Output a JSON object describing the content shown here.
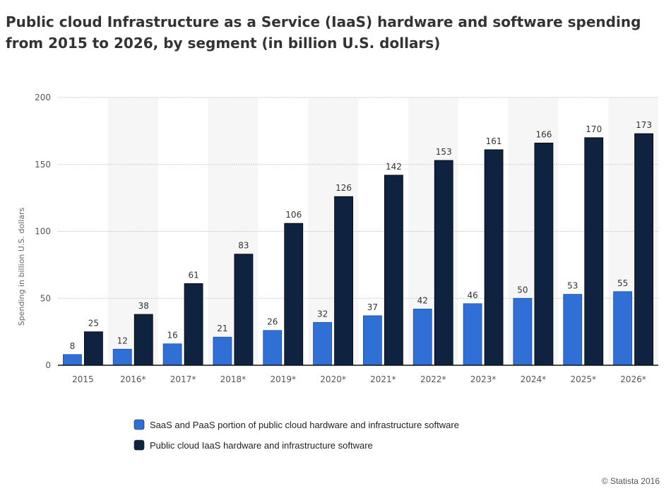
{
  "chart_data": {
    "type": "bar",
    "title": "Public cloud Infrastructure as a Service (IaaS) hardware and software spending from 2015 to 2026, by segment (in billion U.S. dollars)",
    "xlabel": "",
    "ylabel": "Spending in billion U.S. dollars",
    "ylim": [
      0,
      200
    ],
    "yticks": [
      0,
      50,
      100,
      150,
      200
    ],
    "grid": true,
    "legend_position": "bottom",
    "categories": [
      "2015",
      "2016*",
      "2017*",
      "2018*",
      "2019*",
      "2020*",
      "2021*",
      "2022*",
      "2023*",
      "2024*",
      "2025*",
      "2026*"
    ],
    "series": [
      {
        "name": "SaaS and PaaS portion of public cloud hardware and infrastructure software",
        "color": "#2f6fd6",
        "values": [
          8,
          12,
          16,
          21,
          26,
          32,
          37,
          42,
          46,
          50,
          53,
          55
        ]
      },
      {
        "name": "Public cloud IaaS hardware and infrastructure software",
        "color": "#0f2340",
        "values": [
          25,
          38,
          61,
          83,
          106,
          126,
          142,
          153,
          161,
          166,
          170,
          173
        ]
      }
    ],
    "credit": "© Statista 2016"
  }
}
